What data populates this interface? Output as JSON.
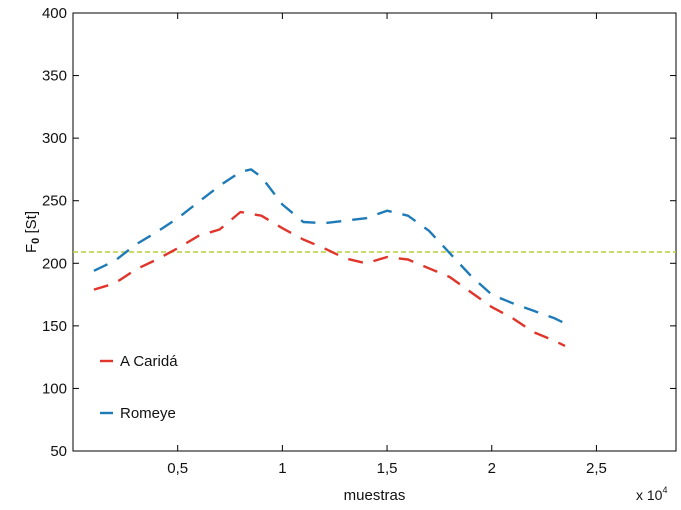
{
  "chart_data": {
    "type": "line",
    "xlabel": "muestras",
    "ylabel_main": "F",
    "ylabel_sub": "0",
    "ylabel_rest": " [St]",
    "x_multiplier_label": "x 10",
    "x_multiplier_exp": "4",
    "xlim": [
      0,
      28800
    ],
    "ylim": [
      50,
      400
    ],
    "x_ticks": [
      5000,
      10000,
      15000,
      20000,
      25000
    ],
    "x_tick_labels": [
      "0,5",
      "1",
      "1,5",
      "2",
      "2,5"
    ],
    "y_ticks": [
      50,
      100,
      150,
      200,
      250,
      300,
      350,
      400
    ],
    "y_tick_labels": [
      "50",
      "100",
      "150",
      "200",
      "250",
      "300",
      "350",
      "400"
    ],
    "grid": false,
    "legend_placement": "lower-left",
    "reference_line": {
      "y": 209,
      "color": "#b5cf3a"
    },
    "series": [
      {
        "name": "A Caridá",
        "color": "#e0352b",
        "x": [
          1000,
          2000,
          3000,
          4000,
          5000,
          6000,
          7000,
          8000,
          9000,
          10000,
          11000,
          12000,
          13000,
          14000,
          15000,
          16000,
          17000,
          18000,
          19000,
          20000,
          21000,
          22000,
          23000,
          23500
        ],
        "y": [
          179,
          184,
          195,
          203,
          212,
          222,
          227,
          241,
          238,
          228,
          219,
          212,
          204,
          200,
          205,
          203,
          196,
          189,
          177,
          165,
          156,
          145,
          138,
          134
        ]
      },
      {
        "name": "Romeye",
        "color": "#1f7bb8",
        "x": [
          1000,
          2000,
          3000,
          4000,
          5000,
          6000,
          7000,
          8000,
          8500,
          9000,
          10000,
          11000,
          12000,
          13000,
          14000,
          15000,
          16000,
          17000,
          18000,
          19000,
          20000,
          21000,
          22000,
          23000,
          23500
        ],
        "y": [
          194,
          202,
          215,
          225,
          236,
          249,
          262,
          273,
          275,
          269,
          247,
          233,
          232,
          234,
          236,
          242,
          238,
          226,
          208,
          190,
          175,
          168,
          162,
          156,
          152
        ]
      }
    ]
  }
}
